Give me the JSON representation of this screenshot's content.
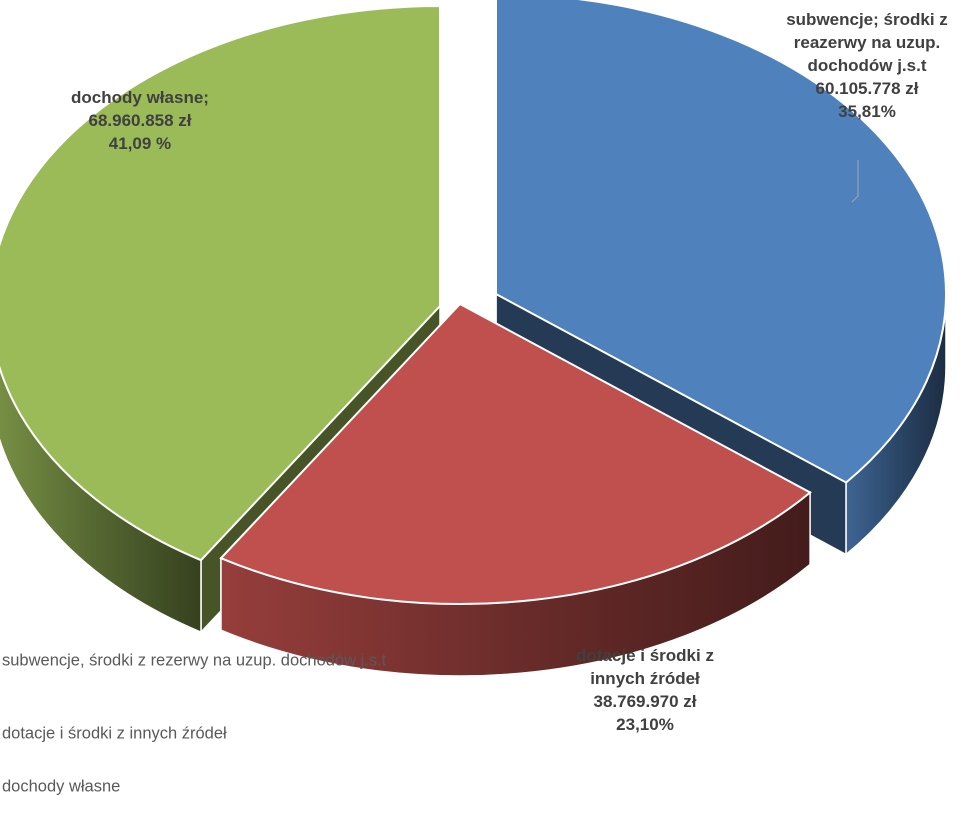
{
  "chart_data": {
    "type": "pie",
    "style": "3d-exploded",
    "title": "",
    "slices": [
      {
        "key": "subwencje",
        "legend": "subwencje, środki z rezerwy na uzup. dochodów j.s.t",
        "label_lines": [
          "subwencje; środki z",
          "reazerwy na uzup.",
          "dochodów j.s.t",
          "60.105.778 zł",
          "35,81%"
        ],
        "value": 60105778,
        "percent": 35.81,
        "color": "#4f81bd"
      },
      {
        "key": "dotacje",
        "legend": "dotacje i środki z innych źródeł",
        "label_lines": [
          "dotacje i środki z",
          "innych źródeł",
          "38.769.970 zł",
          "23,10%"
        ],
        "value": 38769970,
        "percent": 23.1,
        "color": "#c0504d"
      },
      {
        "key": "wlasne",
        "legend": "dochody własne",
        "label_lines": [
          "dochody własne;",
          "68.960.858 zł",
          "41,09 %"
        ],
        "value": 68960858,
        "percent": 41.09,
        "color": "#9bbb59"
      }
    ],
    "legend_position": "bottom-left"
  }
}
